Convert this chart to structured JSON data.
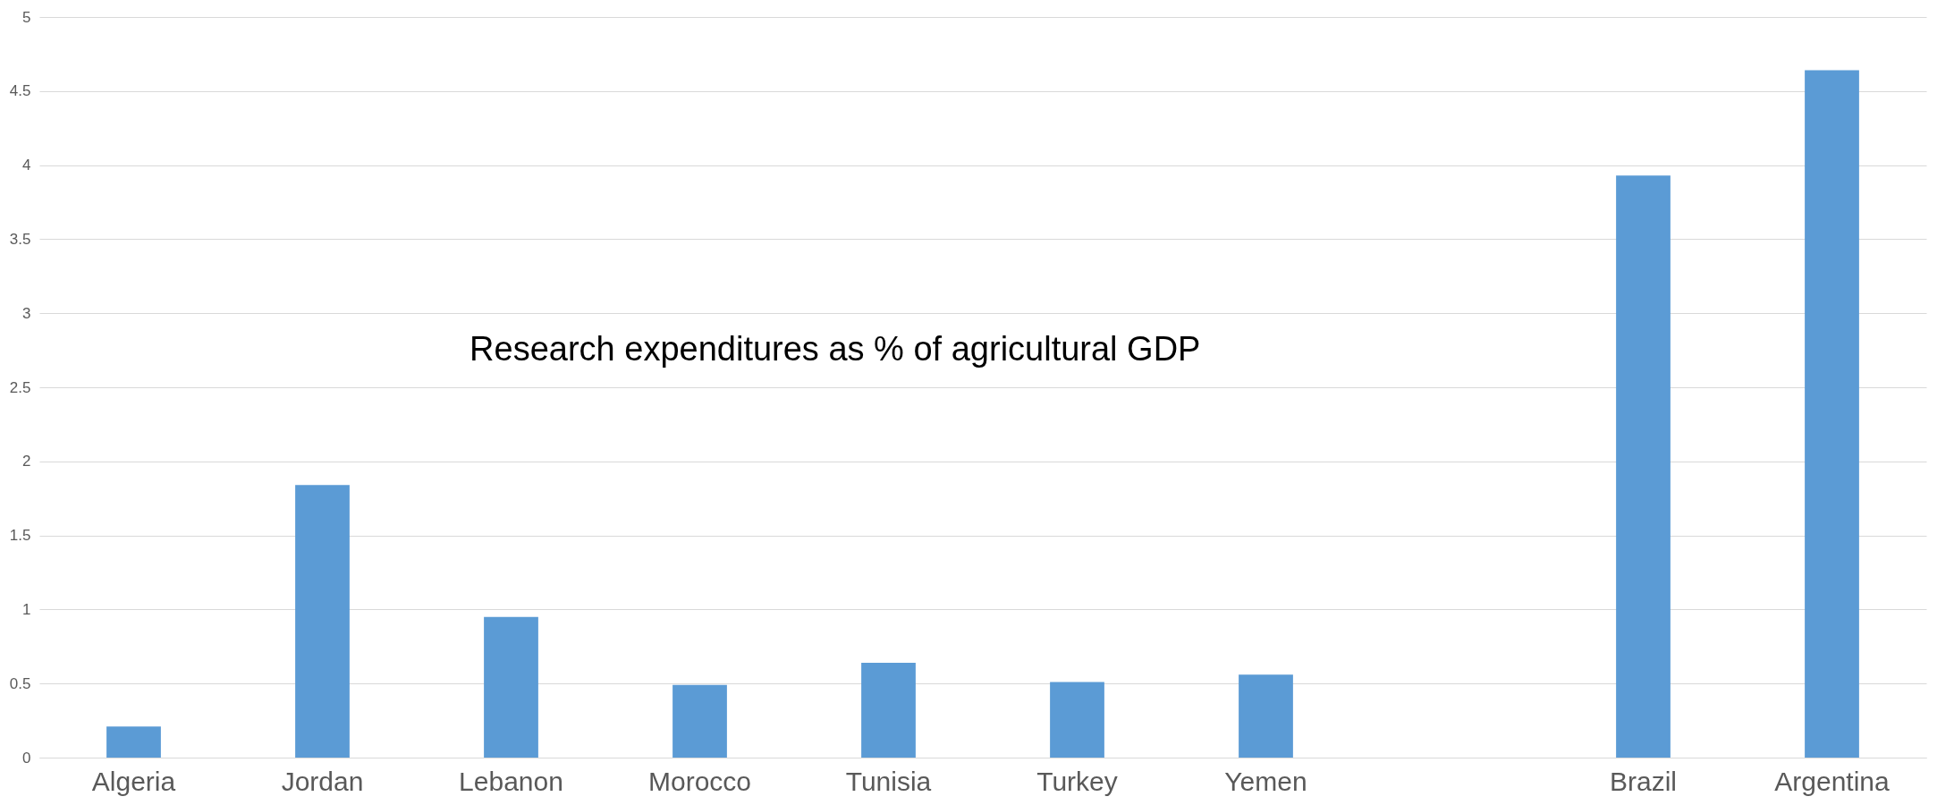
{
  "chart_data": {
    "type": "bar",
    "title": "Research expenditures as % of agricultural GDP",
    "categories": [
      "Algeria",
      "Jordan",
      "Lebanon",
      "Morocco",
      "Tunisia",
      "Turkey",
      "Yemen",
      null,
      "Brazil",
      "Argentina"
    ],
    "values": [
      0.21,
      1.84,
      0.95,
      0.49,
      0.64,
      0.51,
      0.56,
      null,
      3.93,
      4.64
    ],
    "color": "#5b9bd5",
    "ylim": [
      0,
      5
    ],
    "yticks": [
      0,
      0.5,
      1,
      1.5,
      2,
      2.5,
      3,
      3.5,
      4,
      4.5,
      5
    ],
    "grid": "y"
  }
}
